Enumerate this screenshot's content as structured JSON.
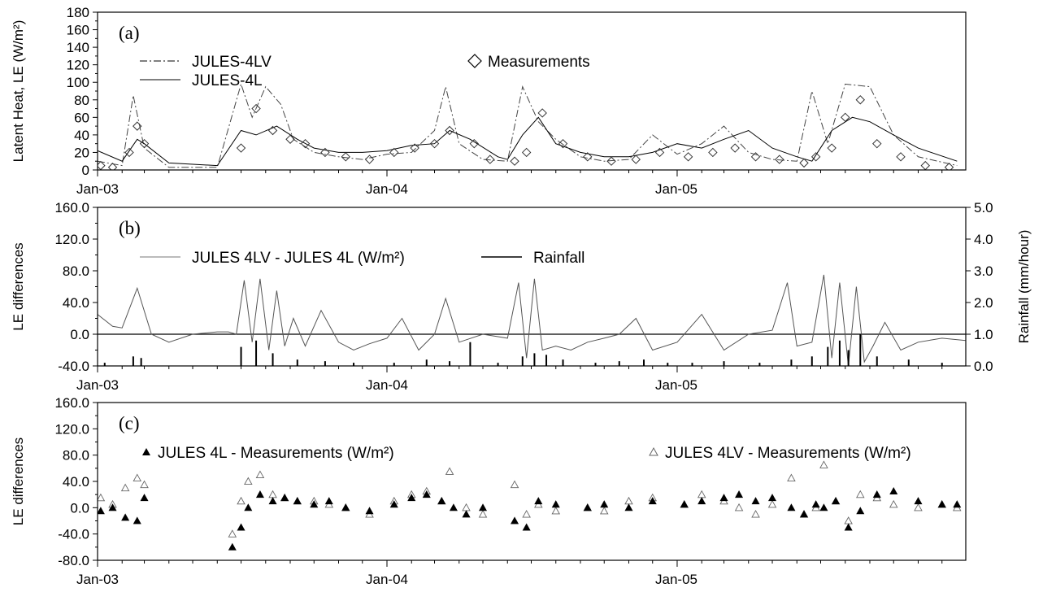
{
  "chart_data": [
    {
      "panel_label": "(a)",
      "type": "line",
      "ylabel": "Latent Heat, LE (W/m²)",
      "ylim": [
        0,
        180
      ],
      "yticks": [
        "0",
        "20",
        "40",
        "60",
        "80",
        "100",
        "120",
        "140",
        "160",
        "180"
      ],
      "xticks": [
        "Jan-03",
        "Jan-04",
        "Jan-05"
      ],
      "x_range": [
        "2003-01-01",
        "2005-12-31"
      ],
      "legend": [
        {
          "name": "JULES-4LV",
          "style": "dash-dot"
        },
        {
          "name": "JULES-4L",
          "style": "solid"
        },
        {
          "name": "Measurements",
          "style": "diamond"
        }
      ],
      "series": [
        {
          "name": "JULES-4LV",
          "x": [
            "2003-01-01",
            "2003-02-01",
            "2003-02-15",
            "2003-03-01",
            "2003-04-01",
            "2003-06-01",
            "2003-07-01",
            "2003-07-15",
            "2003-08-01",
            "2003-08-20",
            "2003-09-05",
            "2003-10-01",
            "2003-11-01",
            "2003-12-01",
            "2004-01-01",
            "2004-02-01",
            "2004-03-01",
            "2004-03-15",
            "2004-04-01",
            "2004-05-01",
            "2004-06-01",
            "2004-06-20",
            "2004-07-10",
            "2004-08-01",
            "2004-09-01",
            "2004-10-01",
            "2004-11-01",
            "2004-12-01",
            "2005-01-01",
            "2005-02-01",
            "2005-03-01",
            "2005-04-01",
            "2005-05-01",
            "2005-06-01",
            "2005-06-20",
            "2005-07-10",
            "2005-08-01",
            "2005-09-01",
            "2005-10-01",
            "2005-11-01",
            "2005-12-20"
          ],
          "values": [
            10,
            5,
            85,
            25,
            3,
            3,
            98,
            60,
            95,
            75,
            35,
            20,
            15,
            12,
            18,
            20,
            45,
            95,
            30,
            12,
            10,
            95,
            55,
            35,
            15,
            10,
            12,
            40,
            18,
            30,
            50,
            20,
            12,
            10,
            90,
            30,
            98,
            95,
            40,
            15,
            5
          ]
        },
        {
          "name": "JULES-4L",
          "x": [
            "2003-01-01",
            "2003-02-01",
            "2003-02-20",
            "2003-03-01",
            "2003-04-01",
            "2003-06-01",
            "2003-07-01",
            "2003-07-20",
            "2003-08-15",
            "2003-09-10",
            "2003-10-01",
            "2003-11-01",
            "2003-12-01",
            "2004-01-01",
            "2004-02-01",
            "2004-03-01",
            "2004-03-20",
            "2004-04-15",
            "2004-05-20",
            "2004-06-01",
            "2004-06-20",
            "2004-07-10",
            "2004-08-01",
            "2004-09-01",
            "2004-10-01",
            "2004-11-01",
            "2004-12-01",
            "2005-01-01",
            "2005-02-01",
            "2005-03-01",
            "2005-04-01",
            "2005-05-01",
            "2005-06-01",
            "2005-06-20",
            "2005-07-15",
            "2005-08-10",
            "2005-09-01",
            "2005-10-01",
            "2005-11-01",
            "2005-12-20"
          ],
          "values": [
            22,
            10,
            35,
            30,
            8,
            5,
            45,
            40,
            50,
            35,
            25,
            20,
            20,
            22,
            28,
            30,
            45,
            35,
            15,
            12,
            40,
            60,
            30,
            20,
            15,
            15,
            20,
            30,
            25,
            35,
            45,
            25,
            15,
            10,
            45,
            60,
            55,
            40,
            25,
            10
          ]
        },
        {
          "name": "Measurements",
          "x": [
            "2003-01-05",
            "2003-01-20",
            "2003-02-10",
            "2003-02-20",
            "2003-03-01",
            "2003-07-01",
            "2003-07-20",
            "2003-08-10",
            "2003-09-01",
            "2003-09-20",
            "2003-10-15",
            "2003-11-10",
            "2003-12-10",
            "2004-01-10",
            "2004-02-05",
            "2004-03-01",
            "2004-03-20",
            "2004-04-20",
            "2004-05-10",
            "2004-06-10",
            "2004-06-25",
            "2004-07-15",
            "2004-08-10",
            "2004-09-10",
            "2004-10-10",
            "2004-11-10",
            "2004-12-10",
            "2005-01-15",
            "2005-02-15",
            "2005-03-15",
            "2005-04-10",
            "2005-05-10",
            "2005-06-10",
            "2005-06-25",
            "2005-07-15",
            "2005-08-01",
            "2005-08-20",
            "2005-09-10",
            "2005-10-10",
            "2005-11-10",
            "2005-12-10"
          ],
          "values": [
            5,
            3,
            20,
            50,
            30,
            25,
            70,
            45,
            35,
            30,
            20,
            15,
            12,
            20,
            25,
            30,
            45,
            30,
            12,
            10,
            20,
            65,
            30,
            15,
            10,
            12,
            20,
            15,
            20,
            25,
            15,
            12,
            8,
            15,
            25,
            60,
            80,
            30,
            15,
            5,
            3
          ]
        }
      ]
    },
    {
      "panel_label": "(b)",
      "type": "line",
      "ylabel": "LE differences",
      "ylim": [
        -40,
        160
      ],
      "yticks": [
        "-40.0",
        "0.0",
        "40.0",
        "80.0",
        "120.0",
        "160.0"
      ],
      "y2label": "Rainfall (mm/hour)",
      "y2lim": [
        0,
        5
      ],
      "y2ticks": [
        "0.0",
        "1.0",
        "2.0",
        "3.0",
        "4.0",
        "5.0"
      ],
      "xticks": [
        "Jan-03",
        "Jan-04",
        "Jan-05"
      ],
      "x_range": [
        "2003-01-01",
        "2005-12-31"
      ],
      "legend": [
        {
          "name": "JULES 4LV - JULES 4L (W/m²)",
          "style": "thin"
        },
        {
          "name": "Rainfall",
          "style": "thick"
        }
      ],
      "series": [
        {
          "name": "JULES 4LV - JULES 4L (W/m²)",
          "x": [
            "2003-01-01",
            "2003-01-20",
            "2003-02-01",
            "2003-02-20",
            "2003-03-10",
            "2003-04-01",
            "2003-05-01",
            "2003-06-01",
            "2003-06-15",
            "2003-06-25",
            "2003-07-05",
            "2003-07-15",
            "2003-07-25",
            "2003-08-05",
            "2003-08-15",
            "2003-08-25",
            "2003-09-05",
            "2003-09-20",
            "2003-10-10",
            "2003-11-01",
            "2003-11-20",
            "2003-12-10",
            "2004-01-01",
            "2004-01-20",
            "2004-02-10",
            "2004-03-01",
            "2004-03-15",
            "2004-04-01",
            "2004-05-01",
            "2004-06-01",
            "2004-06-15",
            "2004-06-25",
            "2004-07-05",
            "2004-07-15",
            "2004-08-01",
            "2004-08-20",
            "2004-09-10",
            "2004-10-01",
            "2004-10-20",
            "2004-11-10",
            "2004-12-01",
            "2005-01-01",
            "2005-02-01",
            "2005-03-01",
            "2005-04-01",
            "2005-05-01",
            "2005-05-20",
            "2005-06-01",
            "2005-06-20",
            "2005-07-05",
            "2005-07-15",
            "2005-07-25",
            "2005-08-05",
            "2005-08-15",
            "2005-08-25",
            "2005-09-05",
            "2005-09-20",
            "2005-10-10",
            "2005-11-01",
            "2005-12-01",
            "2005-12-31"
          ],
          "values": [
            25,
            10,
            8,
            58,
            0,
            -10,
            0,
            3,
            3,
            0,
            68,
            -10,
            70,
            -20,
            55,
            -15,
            20,
            -15,
            30,
            -10,
            -20,
            -12,
            -5,
            20,
            -20,
            0,
            45,
            -10,
            0,
            -5,
            65,
            -30,
            70,
            -20,
            -15,
            -20,
            -10,
            -5,
            0,
            20,
            -20,
            -10,
            25,
            -20,
            0,
            5,
            65,
            -15,
            -10,
            75,
            -30,
            65,
            -40,
            60,
            -35,
            -15,
            15,
            -20,
            -10,
            -5,
            -8
          ]
        },
        {
          "name": "Rainfall",
          "x": [
            "2003-01-10",
            "2003-02-15",
            "2003-02-25",
            "2003-07-01",
            "2003-07-20",
            "2003-08-10",
            "2003-09-10",
            "2003-10-15",
            "2003-11-20",
            "2004-01-10",
            "2004-02-20",
            "2004-03-20",
            "2004-04-15",
            "2004-05-20",
            "2004-06-20",
            "2004-07-05",
            "2004-07-20",
            "2004-08-10",
            "2004-09-20",
            "2004-10-20",
            "2004-11-20",
            "2004-12-20",
            "2005-01-20",
            "2005-03-01",
            "2005-04-15",
            "2005-05-25",
            "2005-06-20",
            "2005-07-10",
            "2005-07-25",
            "2005-08-05",
            "2005-08-20",
            "2005-09-10",
            "2005-10-20",
            "2005-12-01"
          ],
          "values": [
            0.1,
            0.3,
            0.25,
            0.6,
            0.8,
            0.4,
            0.2,
            0.15,
            0.1,
            0.1,
            0.2,
            0.15,
            0.75,
            0.1,
            0.3,
            0.4,
            0.35,
            0.2,
            0.1,
            0.15,
            0.2,
            0.1,
            0.1,
            0.15,
            0.1,
            0.2,
            0.3,
            0.6,
            0.8,
            0.5,
            1.0,
            0.3,
            0.2,
            0.1
          ]
        }
      ]
    },
    {
      "panel_label": "(c)",
      "type": "scatter",
      "ylabel": "LE differences",
      "ylim": [
        -80,
        160
      ],
      "yticks": [
        "-80.0",
        "-40.0",
        "0.0",
        "40.0",
        "80.0",
        "120.0",
        "160.0"
      ],
      "xticks": [
        "Jan-03",
        "Jan-04",
        "Jan-05"
      ],
      "x_range": [
        "2003-01-01",
        "2005-12-31"
      ],
      "legend": [
        {
          "name": "JULES 4L - Measurements (W/m²)",
          "style": "filled-triangle"
        },
        {
          "name": "JULES 4LV - Measurements (W/m²)",
          "style": "open-triangle"
        }
      ],
      "series": [
        {
          "name": "JULES 4L - Measurements (W/m²)",
          "x": [
            "2003-01-05",
            "2003-01-20",
            "2003-02-05",
            "2003-02-20",
            "2003-03-01",
            "2003-06-20",
            "2003-07-01",
            "2003-07-10",
            "2003-07-25",
            "2003-08-10",
            "2003-08-25",
            "2003-09-10",
            "2003-10-01",
            "2003-10-20",
            "2003-11-10",
            "2003-12-10",
            "2004-01-10",
            "2004-02-01",
            "2004-02-20",
            "2004-03-10",
            "2004-03-25",
            "2004-04-10",
            "2004-05-01",
            "2004-06-10",
            "2004-06-25",
            "2004-07-10",
            "2004-08-01",
            "2004-09-10",
            "2004-10-01",
            "2004-11-01",
            "2004-12-01",
            "2005-01-10",
            "2005-02-01",
            "2005-03-01",
            "2005-03-20",
            "2005-04-10",
            "2005-05-01",
            "2005-05-25",
            "2005-06-10",
            "2005-06-25",
            "2005-07-05",
            "2005-07-20",
            "2005-08-05",
            "2005-08-20",
            "2005-09-10",
            "2005-10-01",
            "2005-11-01",
            "2005-12-01",
            "2005-12-20"
          ],
          "values": [
            -5,
            0,
            -15,
            -20,
            15,
            -60,
            -30,
            0,
            20,
            10,
            15,
            10,
            5,
            10,
            0,
            -5,
            5,
            15,
            20,
            10,
            0,
            -10,
            0,
            -20,
            -30,
            10,
            5,
            0,
            5,
            0,
            10,
            5,
            10,
            15,
            20,
            10,
            15,
            0,
            -10,
            5,
            0,
            10,
            -30,
            -5,
            20,
            25,
            10,
            5,
            5
          ]
        },
        {
          "name": "JULES 4LV - Measurements (W/m²)",
          "x": [
            "2003-01-05",
            "2003-01-20",
            "2003-02-05",
            "2003-02-20",
            "2003-03-01",
            "2003-06-20",
            "2003-07-01",
            "2003-07-10",
            "2003-07-25",
            "2003-08-10",
            "2003-08-25",
            "2003-09-10",
            "2003-10-01",
            "2003-10-20",
            "2003-11-10",
            "2003-12-10",
            "2004-01-10",
            "2004-02-01",
            "2004-02-20",
            "2004-03-10",
            "2004-03-20",
            "2004-04-10",
            "2004-05-01",
            "2004-06-10",
            "2004-06-25",
            "2004-07-10",
            "2004-08-01",
            "2004-09-10",
            "2004-10-01",
            "2004-11-01",
            "2004-12-01",
            "2005-01-10",
            "2005-02-01",
            "2005-03-01",
            "2005-03-20",
            "2005-04-10",
            "2005-05-01",
            "2005-05-25",
            "2005-06-10",
            "2005-06-25",
            "2005-07-05",
            "2005-07-20",
            "2005-08-05",
            "2005-08-20",
            "2005-09-10",
            "2005-10-01",
            "2005-11-01",
            "2005-12-01",
            "2005-12-20"
          ],
          "values": [
            15,
            5,
            30,
            45,
            35,
            -40,
            10,
            40,
            50,
            20,
            15,
            10,
            10,
            5,
            0,
            -10,
            10,
            20,
            25,
            10,
            55,
            0,
            -10,
            35,
            -10,
            5,
            -5,
            0,
            -5,
            10,
            15,
            5,
            20,
            10,
            0,
            -10,
            5,
            45,
            -10,
            0,
            65,
            10,
            -20,
            20,
            15,
            5,
            0,
            5,
            0
          ]
        }
      ]
    }
  ]
}
